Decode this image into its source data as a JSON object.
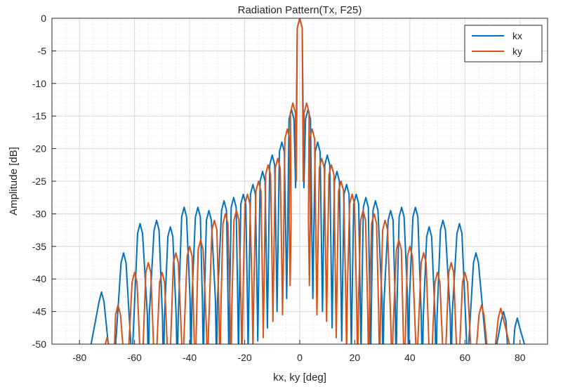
{
  "chart_data": {
    "type": "line",
    "title": "Radiation Pattern(Tx, F25)",
    "xlabel": "kx, ky [deg]",
    "ylabel": "Amplitude [dB]",
    "xlim": [
      -90,
      90
    ],
    "ylim": [
      -50,
      0
    ],
    "xticks": [
      -80,
      -60,
      -40,
      -20,
      0,
      20,
      40,
      60,
      80
    ],
    "yticks": [
      0,
      -5,
      -10,
      -15,
      -20,
      -25,
      -30,
      -35,
      -40,
      -45,
      -50
    ],
    "xtick_labels": [
      "-80",
      "-60",
      "-40",
      "-20",
      "0",
      "20",
      "40",
      "60",
      "80"
    ],
    "ytick_labels": [
      "0",
      "-5",
      "-10",
      "-15",
      "-20",
      "-25",
      "-30",
      "-35",
      "-40",
      "-45",
      "-50"
    ],
    "grid": true,
    "legend_position": "top-right",
    "series": [
      {
        "name": "kx",
        "color": "#0072BD",
        "lobe_peaks": [
          [
            -72,
            -42
          ],
          [
            -64,
            -36
          ],
          [
            -58,
            -31.5
          ],
          [
            -52,
            -31
          ],
          [
            -47,
            -32
          ],
          [
            -42,
            -29
          ],
          [
            -37,
            -29
          ],
          [
            -33,
            -29.5
          ],
          [
            -27.5,
            -28
          ],
          [
            -24,
            -27.5
          ],
          [
            -20.5,
            -27
          ],
          [
            -17,
            -25.5
          ],
          [
            -13.5,
            -23.5
          ],
          [
            -10,
            -21
          ],
          [
            -6.5,
            -19
          ],
          [
            -3,
            -14
          ],
          [
            0,
            0
          ],
          [
            3,
            -14
          ],
          [
            6.5,
            -19
          ],
          [
            10,
            -21
          ],
          [
            13.5,
            -23.5
          ],
          [
            17,
            -25.5
          ],
          [
            20.5,
            -27
          ],
          [
            24,
            -27.5
          ],
          [
            27.5,
            -28
          ],
          [
            33,
            -29.5
          ],
          [
            37,
            -29
          ],
          [
            42,
            -29
          ],
          [
            47,
            -32
          ],
          [
            52,
            -31
          ],
          [
            58,
            -31.5
          ],
          [
            64,
            -36
          ],
          [
            74,
            -45
          ],
          [
            79,
            -46
          ]
        ]
      },
      {
        "name": "ky",
        "color": "#D95319",
        "lobe_peaks": [
          [
            -70,
            -49
          ],
          [
            -66,
            -44
          ],
          [
            -60,
            -39
          ],
          [
            -55,
            -37.5
          ],
          [
            -50,
            -39
          ],
          [
            -45,
            -36
          ],
          [
            -40,
            -35
          ],
          [
            -36,
            -34
          ],
          [
            -31,
            -31
          ],
          [
            -27,
            -30
          ],
          [
            -23,
            -29.5
          ],
          [
            -19,
            -27
          ],
          [
            -15,
            -25
          ],
          [
            -11.5,
            -22.5
          ],
          [
            -8,
            -21.5
          ],
          [
            -4.5,
            -17
          ],
          [
            -2.5,
            -13
          ],
          [
            0,
            0
          ],
          [
            2.5,
            -13
          ],
          [
            4.5,
            -17
          ],
          [
            8,
            -21.5
          ],
          [
            11.5,
            -22.5
          ],
          [
            15,
            -25
          ],
          [
            19,
            -27
          ],
          [
            23,
            -29.5
          ],
          [
            27,
            -30
          ],
          [
            31,
            -31
          ],
          [
            36,
            -34
          ],
          [
            40,
            -35
          ],
          [
            45,
            -36
          ],
          [
            50,
            -39
          ],
          [
            55,
            -37.5
          ],
          [
            60,
            -39
          ],
          [
            66,
            -44
          ],
          [
            73,
            -44.5
          ]
        ]
      }
    ]
  }
}
